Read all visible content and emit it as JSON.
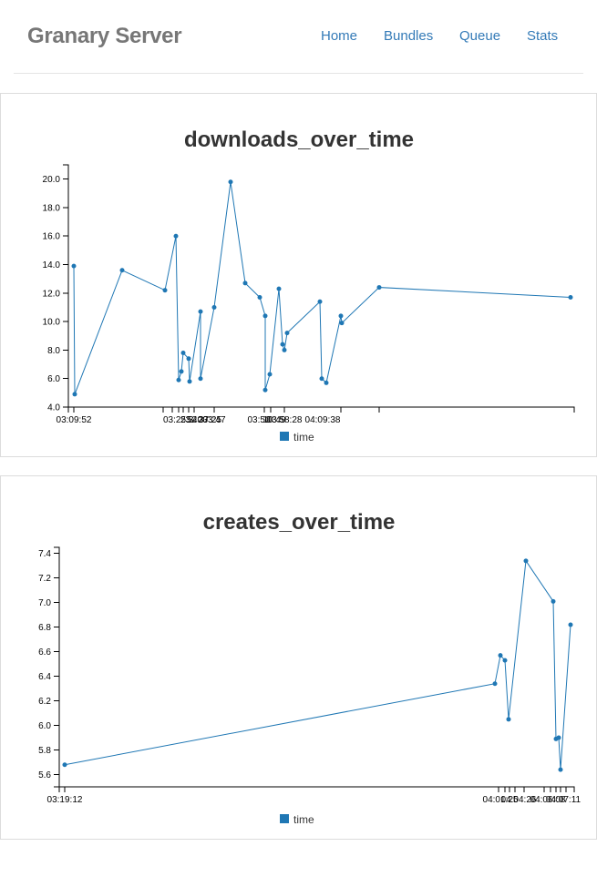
{
  "header": {
    "brand": "Granary Server",
    "nav": [
      {
        "label": "Home"
      },
      {
        "label": "Bundles"
      },
      {
        "label": "Queue"
      },
      {
        "label": "Stats"
      }
    ]
  },
  "colors": {
    "series": "#1f77b4",
    "brand": "#777777",
    "link": "#337ab7"
  },
  "chart_data": [
    {
      "type": "line",
      "title": "downloads_over_time",
      "xlabel": "",
      "ylabel": "",
      "ylim": [
        4.0,
        21.0
      ],
      "yticks": [
        "4.0",
        "6.0",
        "8.0",
        "10.0",
        "12.0",
        "14.0",
        "16.0",
        "18.0",
        "20.0"
      ],
      "xticks": [
        "03:09:52",
        "03:25:3",
        "23",
        "52",
        "40",
        "23",
        "37:25",
        "03:47",
        "03:50",
        "10:49",
        "03:58:28",
        "04:09:38"
      ],
      "legend": "bottom-center",
      "series": [
        {
          "name": "time",
          "values": [
            13.9,
            4.9,
            13.6,
            12.2,
            16.0,
            5.9,
            6.5,
            7.8,
            7.4,
            5.8,
            10.7,
            6.0,
            11.0,
            19.8,
            12.7,
            11.7,
            10.4,
            5.2,
            6.3,
            12.3,
            8.4,
            8.0,
            9.2,
            11.4,
            6.0,
            5.7,
            10.4,
            9.9,
            12.4,
            11.7
          ]
        }
      ]
    },
    {
      "type": "line",
      "title": "creates_over_time",
      "xlabel": "",
      "ylabel": "",
      "ylim": [
        5.5,
        7.45
      ],
      "yticks": [
        "5.6",
        "5.8",
        "6.0",
        "6.2",
        "6.4",
        "6.6",
        "6.8",
        "7.0",
        "7.2",
        "7.4"
      ],
      "xticks": [
        "03:19:12",
        "04:01:25",
        "04:04:26",
        "04:06:08",
        "04:07:11"
      ],
      "legend": "bottom-center",
      "series": [
        {
          "name": "time",
          "values": [
            5.68,
            6.34,
            6.57,
            6.53,
            6.05,
            7.34,
            7.01,
            5.89,
            5.9,
            5.64,
            6.82
          ]
        }
      ]
    }
  ]
}
